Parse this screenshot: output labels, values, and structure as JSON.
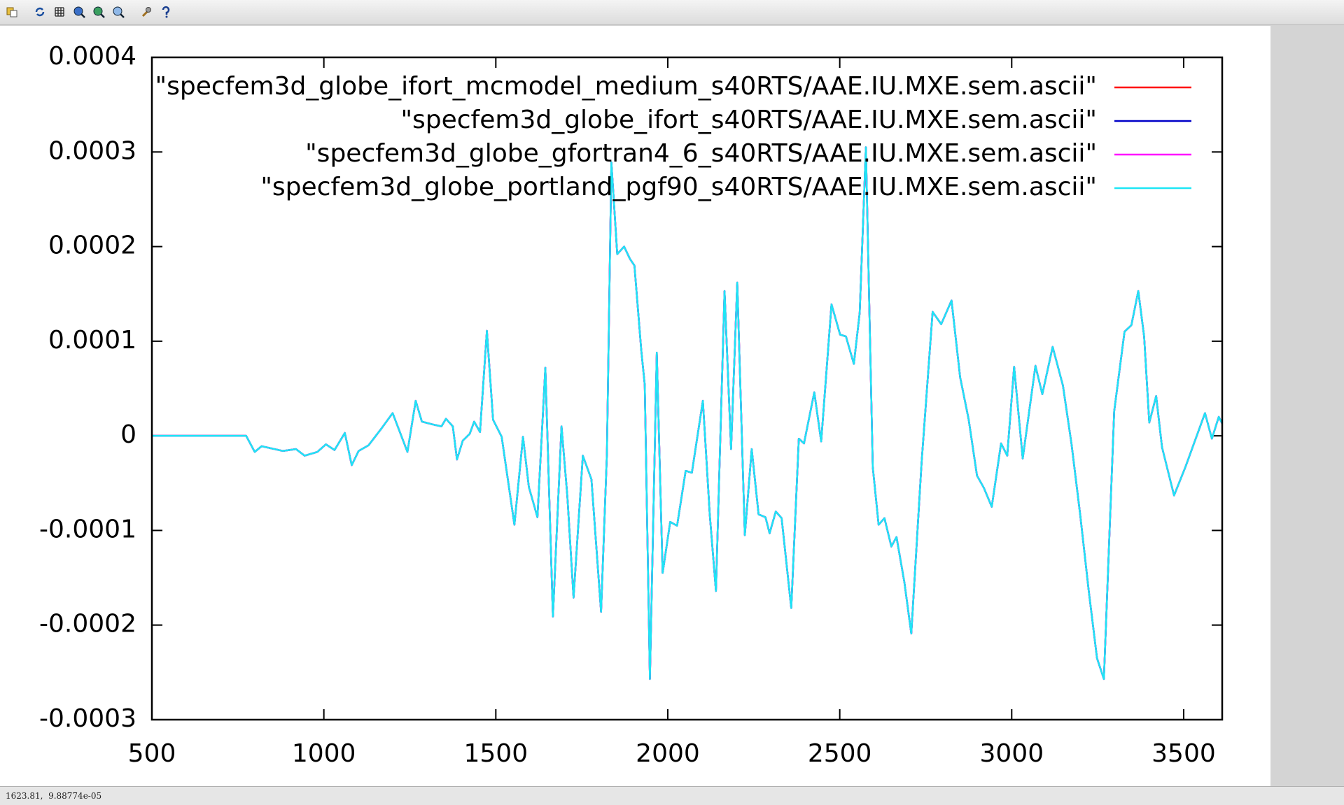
{
  "chart_data": {
    "type": "line",
    "xlim": [
      500,
      3612
    ],
    "ylim": [
      -0.0003,
      0.0004
    ],
    "xticks": [
      500,
      1000,
      1500,
      2000,
      2500,
      3000,
      3500
    ],
    "yticks": [
      -0.0003,
      -0.0002,
      -0.0001,
      0,
      0.0001,
      0.0002,
      0.0003,
      0.0004
    ],
    "x": [
      500,
      774,
      799,
      819,
      856,
      881,
      919,
      944,
      981,
      1006,
      1031,
      1061,
      1081,
      1101,
      1130,
      1168,
      1200,
      1243,
      1267,
      1285,
      1317,
      1342,
      1355,
      1375,
      1387,
      1404,
      1424,
      1437,
      1454,
      1474,
      1492,
      1517,
      1554,
      1579,
      1596,
      1621,
      1644,
      1666,
      1691,
      1708,
      1726,
      1753,
      1778,
      1806,
      1823,
      1836,
      1853,
      1873,
      1890,
      1903,
      1923,
      1933,
      1948,
      1968,
      1985,
      2007,
      2027,
      2052,
      2070,
      2102,
      2122,
      2140,
      2165,
      2184,
      2202,
      2224,
      2244,
      2264,
      2284,
      2296,
      2314,
      2331,
      2359,
      2381,
      2396,
      2426,
      2446,
      2476,
      2501,
      2518,
      2541,
      2558,
      2576,
      2596,
      2613,
      2630,
      2650,
      2665,
      2688,
      2708,
      2738,
      2770,
      2795,
      2825,
      2850,
      2875,
      2899,
      2919,
      2942,
      2969,
      2987,
      3007,
      3032,
      3069,
      3089,
      3119,
      3149,
      3174,
      3199,
      3224,
      3248,
      3268,
      3298,
      3328,
      3348,
      3368,
      3385,
      3400,
      3420,
      3437,
      3472,
      3505,
      3542,
      3562,
      3582,
      3602,
      3612
    ],
    "series": [
      {
        "name": "\"specfem3d_globe_ifort_mcmodel_medium_s40RTS/AAE.IU.MXE.sem.ascii\"",
        "color": "#ff0000",
        "values": [
          0,
          0,
          -1.7e-05,
          -1.1e-05,
          -1.4e-05,
          -1.6e-05,
          -1.4e-05,
          -2.1e-05,
          -1.7e-05,
          -9e-06,
          -1.5e-05,
          3e-06,
          -3.1e-05,
          -1.6e-05,
          -1e-05,
          8e-06,
          2.4e-05,
          -1.7e-05,
          3.7e-05,
          1.5e-05,
          1.2e-05,
          1e-05,
          1.8e-05,
          1e-05,
          -2.5e-05,
          -5e-06,
          2e-06,
          1.5e-05,
          4e-06,
          0.000111,
          1.7e-05,
          -1e-06,
          -9.4e-05,
          -1e-06,
          -5.4e-05,
          -8.6e-05,
          7.2e-05,
          -0.000191,
          1e-05,
          -6.4e-05,
          -0.000171,
          -2.1e-05,
          -4.6e-05,
          -0.000186,
          -1.9e-05,
          0.000289,
          0.000192,
          0.0002,
          0.000187,
          0.00018,
          9e-05,
          5.4e-05,
          -0.000257,
          8.8e-05,
          -0.000145,
          -9.1e-05,
          -9.5e-05,
          -3.7e-05,
          -3.9e-05,
          3.7e-05,
          -8.3e-05,
          -0.000164,
          0.000153,
          -1.4e-05,
          0.000162,
          -0.000105,
          -1.4e-05,
          -8.3e-05,
          -8.6e-05,
          -0.000103,
          -8e-05,
          -8.7e-05,
          -0.000182,
          -3e-06,
          -8e-06,
          4.6e-05,
          -6e-06,
          0.000139,
          0.000107,
          0.000105,
          7.6e-05,
          0.00013,
          0.000305,
          -3.3e-05,
          -9.4e-05,
          -8.7e-05,
          -0.000117,
          -0.000107,
          -0.000155,
          -0.000209,
          -2.8e-05,
          0.000131,
          0.000118,
          0.000143,
          6.2e-05,
          1.7e-05,
          -4.2e-05,
          -5.5e-05,
          -7.5e-05,
          -8e-06,
          -2.1e-05,
          7.3e-05,
          -2.4e-05,
          7.4e-05,
          4.4e-05,
          9.4e-05,
          5.3e-05,
          -9e-06,
          -8.3e-05,
          -0.000164,
          -0.000235,
          -0.000257,
          2.6e-05,
          0.00011,
          0.000117,
          0.000153,
          0.000105,
          1.4e-05,
          4.2e-05,
          -1.2e-05,
          -6.3e-05,
          -3.3e-05,
          4e-06,
          2.4e-05,
          -3e-06,
          2e-05,
          1.3e-05
        ]
      },
      {
        "name": "\"specfem3d_globe_ifort_s40RTS/AAE.IU.MXE.sem.ascii\"",
        "color": "#0000c8",
        "values": [
          0,
          0,
          -1.7e-05,
          -1.1e-05,
          -1.4e-05,
          -1.6e-05,
          -1.4e-05,
          -2.1e-05,
          -1.7e-05,
          -9e-06,
          -1.5e-05,
          3e-06,
          -3.1e-05,
          -1.6e-05,
          -1e-05,
          8e-06,
          2.4e-05,
          -1.7e-05,
          3.7e-05,
          1.5e-05,
          1.2e-05,
          1e-05,
          1.8e-05,
          1e-05,
          -2.5e-05,
          -5e-06,
          2e-06,
          1.5e-05,
          4e-06,
          0.000111,
          1.7e-05,
          -1e-06,
          -9.4e-05,
          -1e-06,
          -5.4e-05,
          -8.6e-05,
          7.2e-05,
          -0.000191,
          1e-05,
          -6.4e-05,
          -0.000171,
          -2.1e-05,
          -4.6e-05,
          -0.000186,
          -1.9e-05,
          0.000289,
          0.000192,
          0.0002,
          0.000187,
          0.00018,
          9e-05,
          5.4e-05,
          -0.000257,
          8.8e-05,
          -0.000145,
          -9.1e-05,
          -9.5e-05,
          -3.7e-05,
          -3.9e-05,
          3.7e-05,
          -8.3e-05,
          -0.000164,
          0.000153,
          -1.4e-05,
          0.000162,
          -0.000105,
          -1.4e-05,
          -8.3e-05,
          -8.6e-05,
          -0.000103,
          -8e-05,
          -8.7e-05,
          -0.000182,
          -3e-06,
          -8e-06,
          4.6e-05,
          -6e-06,
          0.000139,
          0.000107,
          0.000105,
          7.6e-05,
          0.00013,
          0.000305,
          -3.3e-05,
          -9.4e-05,
          -8.7e-05,
          -0.000117,
          -0.000107,
          -0.000155,
          -0.000209,
          -2.8e-05,
          0.000131,
          0.000118,
          0.000143,
          6.2e-05,
          1.7e-05,
          -4.2e-05,
          -5.5e-05,
          -7.5e-05,
          -8e-06,
          -2.1e-05,
          7.3e-05,
          -2.4e-05,
          7.4e-05,
          4.4e-05,
          9.4e-05,
          5.3e-05,
          -9e-06,
          -8.3e-05,
          -0.000164,
          -0.000235,
          -0.000257,
          2.6e-05,
          0.00011,
          0.000117,
          0.000153,
          0.000105,
          1.4e-05,
          4.2e-05,
          -1.2e-05,
          -6.3e-05,
          -3.3e-05,
          4e-06,
          2.4e-05,
          -3e-06,
          2e-05,
          1.3e-05
        ]
      },
      {
        "name": "\"specfem3d_globe_gfortran4_6_s40RTS/AAE.IU.MXE.sem.ascii\"",
        "color": "#ff00ff",
        "values": [
          0,
          0,
          -1.7e-05,
          -1.1e-05,
          -1.4e-05,
          -1.6e-05,
          -1.4e-05,
          -2.1e-05,
          -1.7e-05,
          -9e-06,
          -1.5e-05,
          3e-06,
          -3.1e-05,
          -1.6e-05,
          -1e-05,
          8e-06,
          2.4e-05,
          -1.7e-05,
          3.7e-05,
          1.5e-05,
          1.2e-05,
          1e-05,
          1.8e-05,
          1e-05,
          -2.5e-05,
          -5e-06,
          2e-06,
          1.5e-05,
          4e-06,
          0.000111,
          1.7e-05,
          -1e-06,
          -9.4e-05,
          -1e-06,
          -5.4e-05,
          -8.6e-05,
          7.2e-05,
          -0.000191,
          1e-05,
          -6.4e-05,
          -0.000171,
          -2.1e-05,
          -4.6e-05,
          -0.000186,
          -1.9e-05,
          0.000289,
          0.000192,
          0.0002,
          0.000187,
          0.00018,
          9e-05,
          5.4e-05,
          -0.000257,
          8.8e-05,
          -0.000145,
          -9.1e-05,
          -9.5e-05,
          -3.7e-05,
          -3.9e-05,
          3.7e-05,
          -8.3e-05,
          -0.000164,
          0.000153,
          -1.4e-05,
          0.000162,
          -0.000105,
          -1.4e-05,
          -8.3e-05,
          -8.6e-05,
          -0.000103,
          -8e-05,
          -8.7e-05,
          -0.000182,
          -3e-06,
          -8e-06,
          4.6e-05,
          -6e-06,
          0.000139,
          0.000107,
          0.000105,
          7.6e-05,
          0.00013,
          0.000305,
          -3.3e-05,
          -9.4e-05,
          -8.7e-05,
          -0.000117,
          -0.000107,
          -0.000155,
          -0.000209,
          -2.8e-05,
          0.000131,
          0.000118,
          0.000143,
          6.2e-05,
          1.7e-05,
          -4.2e-05,
          -5.5e-05,
          -7.5e-05,
          -8e-06,
          -2.1e-05,
          7.3e-05,
          -2.4e-05,
          7.4e-05,
          4.4e-05,
          9.4e-05,
          5.3e-05,
          -9e-06,
          -8.3e-05,
          -0.000164,
          -0.000235,
          -0.000257,
          2.6e-05,
          0.00011,
          0.000117,
          0.000153,
          0.000105,
          1.4e-05,
          4.2e-05,
          -1.2e-05,
          -6.3e-05,
          -3.3e-05,
          4e-06,
          2.4e-05,
          -3e-06,
          2e-05,
          1.3e-05
        ]
      },
      {
        "name": "\"specfem3d_globe_portland_pgf90_s40RTS/AAE.IU.MXE.sem.ascii\"",
        "color": "#1ee6f5",
        "values": [
          0,
          0,
          -1.7e-05,
          -1.1e-05,
          -1.4e-05,
          -1.6e-05,
          -1.4e-05,
          -2.1e-05,
          -1.7e-05,
          -9e-06,
          -1.5e-05,
          3e-06,
          -3.1e-05,
          -1.6e-05,
          -1e-05,
          8e-06,
          2.4e-05,
          -1.7e-05,
          3.7e-05,
          1.5e-05,
          1.2e-05,
          1e-05,
          1.8e-05,
          1e-05,
          -2.5e-05,
          -5e-06,
          2e-06,
          1.5e-05,
          4e-06,
          0.000111,
          1.7e-05,
          -1e-06,
          -9.4e-05,
          -1e-06,
          -5.4e-05,
          -8.6e-05,
          7.2e-05,
          -0.000191,
          1e-05,
          -6.4e-05,
          -0.000171,
          -2.1e-05,
          -4.6e-05,
          -0.000186,
          -1.9e-05,
          0.000289,
          0.000192,
          0.0002,
          0.000187,
          0.00018,
          9e-05,
          5.4e-05,
          -0.000257,
          8.8e-05,
          -0.000145,
          -9.1e-05,
          -9.5e-05,
          -3.7e-05,
          -3.9e-05,
          3.7e-05,
          -8.3e-05,
          -0.000164,
          0.000153,
          -1.4e-05,
          0.000162,
          -0.000105,
          -1.4e-05,
          -8.3e-05,
          -8.6e-05,
          -0.000103,
          -8e-05,
          -8.7e-05,
          -0.000182,
          -3e-06,
          -8e-06,
          4.6e-05,
          -6e-06,
          0.000139,
          0.000107,
          0.000105,
          7.6e-05,
          0.00013,
          0.000305,
          -3.3e-05,
          -9.4e-05,
          -8.7e-05,
          -0.000117,
          -0.000107,
          -0.000155,
          -0.000209,
          -2.8e-05,
          0.000131,
          0.000118,
          0.000143,
          6.2e-05,
          1.7e-05,
          -4.2e-05,
          -5.5e-05,
          -7.5e-05,
          -8e-06,
          -2.1e-05,
          7.3e-05,
          -2.4e-05,
          7.4e-05,
          4.4e-05,
          9.4e-05,
          5.3e-05,
          -9e-06,
          -8.3e-05,
          -0.000164,
          -0.000235,
          -0.000257,
          2.6e-05,
          0.00011,
          0.000117,
          0.000153,
          0.000105,
          1.4e-05,
          4.2e-05,
          -1.2e-05,
          -6.3e-05,
          -3.3e-05,
          4e-06,
          2.4e-05,
          -3e-06,
          2e-05,
          1.3e-05
        ]
      }
    ],
    "legend": "top-right",
    "grid": false
  },
  "status_bar": "1623.81,  9.88774e-05"
}
